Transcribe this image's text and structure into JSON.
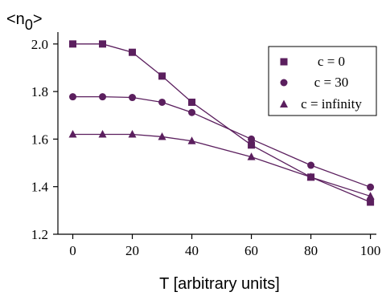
{
  "chart_data": {
    "type": "line",
    "title": "",
    "ylabel": "<n",
    "ylabel_sub": "0",
    "ylabel_close": ">",
    "xlabel": "T [arbitrary units]",
    "x": [
      0,
      10,
      20,
      30,
      40,
      60,
      80,
      100
    ],
    "xticks": [
      0,
      20,
      40,
      60,
      80,
      100
    ],
    "xtick_labels": [
      "0",
      "20",
      "40",
      "60",
      "80",
      "100"
    ],
    "xlim": [
      -5,
      102
    ],
    "ylim": [
      1.2,
      2.05
    ],
    "yticks": [
      1.2,
      1.4,
      1.6,
      1.8,
      2.0
    ],
    "ytick_labels": [
      "1.2",
      "1.4",
      "1.6",
      "1.8",
      "2.0"
    ],
    "grid": false,
    "legend_position": "top-right",
    "series": [
      {
        "name": "c = 0",
        "marker": "square",
        "color": "#5b1f5e",
        "values": [
          2.0,
          2.0,
          1.965,
          1.865,
          1.755,
          1.575,
          1.44,
          1.335
        ]
      },
      {
        "name": "c = 30",
        "marker": "circle",
        "color": "#5b1f5e",
        "values": [
          1.778,
          1.778,
          1.775,
          1.755,
          1.712,
          1.6,
          1.49,
          1.398
        ]
      },
      {
        "name": "c = infinity",
        "marker": "triangle",
        "color": "#5b1f5e",
        "values": [
          1.62,
          1.62,
          1.62,
          1.61,
          1.592,
          1.525,
          1.44,
          1.36
        ]
      }
    ]
  }
}
